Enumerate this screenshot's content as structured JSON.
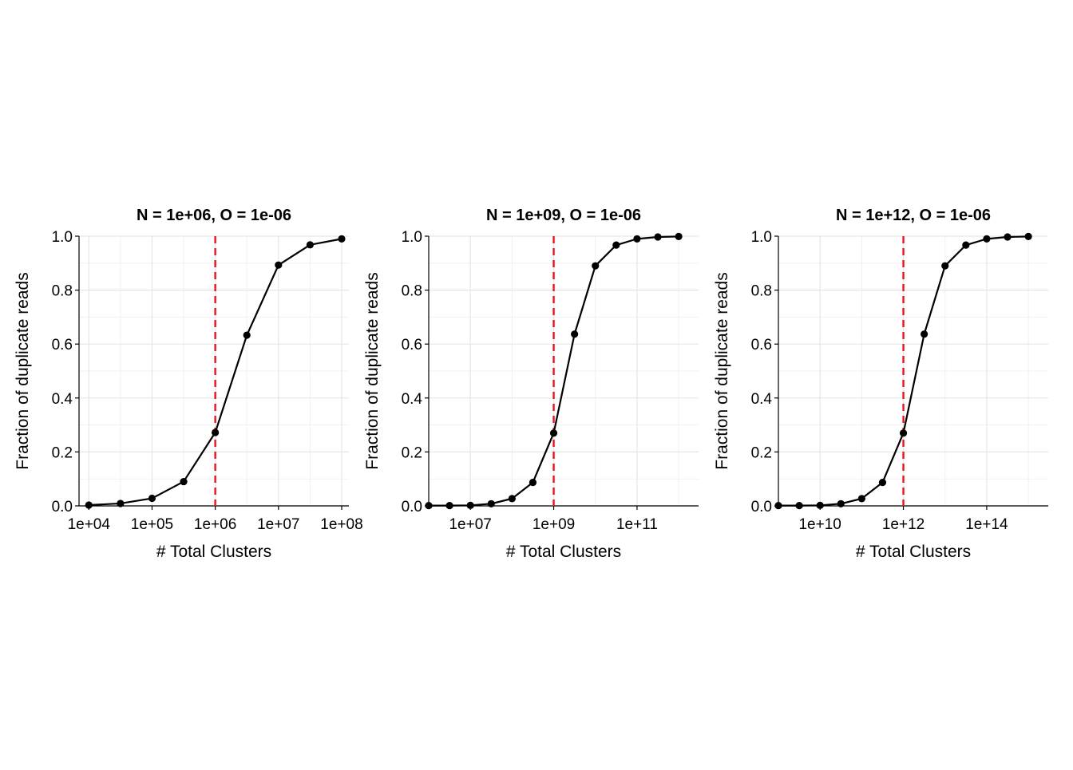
{
  "chart_data": [
    {
      "type": "line",
      "title": "N = 1e+06, O = 1e-06",
      "xlabel": "# Total Clusters",
      "ylabel": "Fraction of duplicate reads",
      "x_scale": "log10",
      "xlim": [
        7000,
        130000000
      ],
      "ylim": [
        0,
        1
      ],
      "xticks": [
        10000,
        100000,
        1000000,
        10000000,
        100000000
      ],
      "xtick_labels": [
        "1e+04",
        "1e+05",
        "1e+06",
        "1e+07",
        "1e+08"
      ],
      "yticks": [
        0,
        0.2,
        0.4,
        0.6,
        0.8,
        1.0
      ],
      "ytick_labels": [
        "0.0",
        "0.2",
        "0.4",
        "0.6",
        "0.8",
        "1.0"
      ],
      "grid": true,
      "vline": {
        "x": 1000000,
        "color": "#e8141c",
        "style": "dashed"
      },
      "series": [
        {
          "color": "#000000",
          "x": [
            10000,
            31623,
            100000,
            316228,
            1000000,
            3162278,
            10000000,
            31622777,
            100000000
          ],
          "y": [
            0.003,
            0.009,
            0.028,
            0.09,
            0.272,
            0.633,
            0.893,
            0.968,
            0.99
          ]
        }
      ]
    },
    {
      "type": "line",
      "title": "N = 1e+09, O = 1e-06",
      "xlabel": "# Total Clusters",
      "ylabel": "Fraction of duplicate reads",
      "x_scale": "log10",
      "xlim": [
        1000000,
        3000000000000
      ],
      "ylim": [
        0,
        1
      ],
      "xticks": [
        10000000,
        1000000000,
        100000000000
      ],
      "xtick_labels": [
        "1e+07",
        "1e+09",
        "1e+11"
      ],
      "yticks": [
        0,
        0.2,
        0.4,
        0.6,
        0.8,
        1.0
      ],
      "ytick_labels": [
        "0.0",
        "0.2",
        "0.4",
        "0.6",
        "0.8",
        "1.0"
      ],
      "grid": true,
      "vline": {
        "x": 1000000000,
        "color": "#e8141c",
        "style": "dashed"
      },
      "series": [
        {
          "color": "#000000",
          "x": [
            1000000,
            3162278,
            10000000,
            31622777,
            100000000,
            316227766,
            1000000000,
            3162277660,
            10000000000,
            31622776602,
            100000000000,
            316227766017,
            1000000000000
          ],
          "y": [
            0.001,
            0.001,
            0.002,
            0.008,
            0.027,
            0.087,
            0.27,
            0.637,
            0.89,
            0.967,
            0.99,
            0.997,
            0.999
          ]
        }
      ]
    },
    {
      "type": "line",
      "title": "N = 1e+12, O = 1e-06",
      "xlabel": "# Total Clusters",
      "ylabel": "Fraction of duplicate reads",
      "x_scale": "log10",
      "xlim": [
        1000000000,
        3000000000000000
      ],
      "ylim": [
        0,
        1
      ],
      "xticks": [
        10000000000,
        1000000000000,
        100000000000000
      ],
      "xtick_labels": [
        "1e+10",
        "1e+12",
        "1e+14"
      ],
      "yticks": [
        0,
        0.2,
        0.4,
        0.6,
        0.8,
        1.0
      ],
      "ytick_labels": [
        "0.0",
        "0.2",
        "0.4",
        "0.6",
        "0.8",
        "1.0"
      ],
      "grid": true,
      "vline": {
        "x": 1000000000000,
        "color": "#e8141c",
        "style": "dashed"
      },
      "series": [
        {
          "color": "#000000",
          "x": [
            1000000000,
            3162277660,
            10000000000,
            31622776602,
            100000000000,
            316227766017,
            1000000000000,
            3162277660168,
            10000000000000,
            31622776601684,
            100000000000000,
            316227766016838,
            1000000000000000
          ],
          "y": [
            0.001,
            0.001,
            0.002,
            0.008,
            0.027,
            0.087,
            0.27,
            0.637,
            0.89,
            0.967,
            0.99,
            0.997,
            0.999
          ]
        }
      ]
    }
  ]
}
